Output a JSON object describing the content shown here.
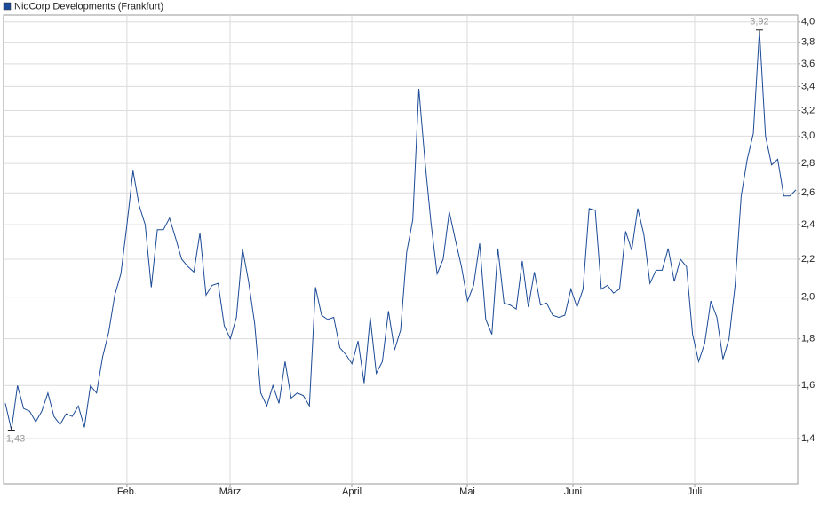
{
  "chart_data": {
    "type": "line",
    "log_scale": true,
    "grid": true,
    "legend": "top-left",
    "series": [
      {
        "name": "NioCorp Developments (Frankfurt)",
        "color": "#1b4a96",
        "values": [
          1.53,
          1.43,
          1.6,
          1.51,
          1.5,
          1.46,
          1.5,
          1.57,
          1.48,
          1.45,
          1.49,
          1.48,
          1.52,
          1.44,
          1.6,
          1.57,
          1.72,
          1.83,
          2.01,
          2.12,
          2.4,
          2.75,
          2.52,
          2.4,
          2.05,
          2.37,
          2.37,
          2.44,
          2.32,
          2.2,
          2.16,
          2.13,
          2.35,
          2.01,
          2.06,
          2.07,
          1.86,
          1.8,
          1.9,
          2.26,
          2.08,
          1.87,
          1.57,
          1.52,
          1.6,
          1.53,
          1.7,
          1.55,
          1.57,
          1.56,
          1.52,
          2.05,
          1.91,
          1.89,
          1.9,
          1.76,
          1.73,
          1.69,
          1.79,
          1.61,
          1.9,
          1.65,
          1.7,
          1.93,
          1.75,
          1.84,
          2.24,
          2.43,
          3.38,
          2.82,
          2.41,
          2.12,
          2.2,
          2.48,
          2.31,
          2.16,
          1.98,
          2.06,
          2.29,
          1.89,
          1.82,
          2.26,
          1.97,
          1.96,
          1.94,
          2.19,
          1.95,
          2.13,
          1.96,
          1.97,
          1.91,
          1.9,
          1.91,
          2.04,
          1.95,
          2.04,
          2.5,
          2.49,
          2.04,
          2.06,
          2.02,
          2.04,
          2.36,
          2.25,
          2.5,
          2.34,
          2.07,
          2.14,
          2.14,
          2.26,
          2.08,
          2.2,
          2.16,
          1.82,
          1.7,
          1.78,
          1.98,
          1.9,
          1.71,
          1.8,
          2.06,
          2.58,
          2.83,
          3.02,
          3.92,
          3.0,
          2.79,
          2.83,
          2.58,
          2.58,
          2.62
        ]
      }
    ],
    "annotations": [
      {
        "text": "3,92",
        "value": 3.92
      },
      {
        "text": "1,43",
        "value": 1.43
      }
    ],
    "xlim": [
      -0.29,
      130.29
    ],
    "xticks": [
      {
        "value": 20.0,
        "label": "Feb."
      },
      {
        "value": 36.96,
        "label": "März"
      },
      {
        "value": 56.97,
        "label": "April"
      },
      {
        "value": 75.96,
        "label": "Mai"
      },
      {
        "value": 93.34,
        "label": "Juni"
      },
      {
        "value": 113.35,
        "label": "Juli"
      }
    ],
    "ylim": [
      1.249,
      4.07
    ],
    "yticks": [
      {
        "value": 1.4,
        "label": "1,4"
      },
      {
        "value": 1.6,
        "label": "1,6"
      },
      {
        "value": 1.8,
        "label": "1,8"
      },
      {
        "value": 2.0,
        "label": "2,0"
      },
      {
        "value": 2.2,
        "label": "2,2"
      },
      {
        "value": 2.4,
        "label": "2,4"
      },
      {
        "value": 2.6,
        "label": "2,6"
      },
      {
        "value": 2.8,
        "label": "2,8"
      },
      {
        "value": 3.0,
        "label": "3,0"
      },
      {
        "value": 3.2,
        "label": "3,2"
      },
      {
        "value": 3.4,
        "label": "3,4"
      },
      {
        "value": 3.6,
        "label": "3,6"
      },
      {
        "value": 3.8,
        "label": "3,8"
      },
      {
        "value": 4.0,
        "label": "4,0"
      }
    ]
  }
}
